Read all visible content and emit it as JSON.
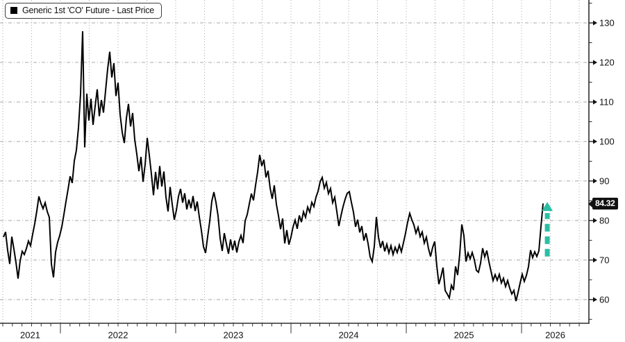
{
  "legend": {
    "label": "Generic 1st 'CO' Future - Last Price",
    "marker_color": "#000000"
  },
  "last_price": {
    "value": "84.32"
  },
  "colors": {
    "line": "#000000",
    "grid": "#a8a8a8",
    "axis": "#2f2f2f",
    "text": "#111111",
    "arrow": "#2bbfa4",
    "price_tag_bg": "#111111",
    "price_tag_text": "#ffffff"
  },
  "chart_data": {
    "type": "line",
    "title": "Generic 1st 'CO' Future - Last Price",
    "xlabel": "",
    "ylabel": "",
    "legend_position": "top-left",
    "grid": "dotted",
    "x_axis": {
      "t_min": 2021.476,
      "t_max": 2026.584,
      "year_boundaries": [
        2022,
        2023,
        2024,
        2025,
        2026
      ],
      "year_labels": [
        "2021",
        "2022",
        "2023",
        "2024",
        "2025",
        "2026"
      ],
      "grid_step_years": 0.25,
      "minor_tick_step_years": 0.08333
    },
    "y_axis": {
      "side": "right",
      "v_min": 54.0,
      "v_max": 135.8,
      "ticks": [
        60,
        70,
        80,
        90,
        100,
        110,
        120,
        130
      ],
      "minor_ticks": [
        55,
        65,
        75,
        85,
        95,
        105,
        115,
        125,
        135
      ]
    },
    "series": [
      {
        "name": "Generic 1st 'CO' Future - Last Price",
        "t_start": 2021.506,
        "t_step": 0.018072,
        "last_price": 84.32,
        "values": [
          75.8,
          77.1,
          72.5,
          69.0,
          75.9,
          72.8,
          69.4,
          65.3,
          69.8,
          72.2,
          71.4,
          72.9,
          74.8,
          73.6,
          76.5,
          79.2,
          82.4,
          86.1,
          84.3,
          83.0,
          84.5,
          82.3,
          80.8,
          69.0,
          65.6,
          72.0,
          74.5,
          76.2,
          78.4,
          81.5,
          84.8,
          87.9,
          91.2,
          89.5,
          95.1,
          97.8,
          103.5,
          112.0,
          127.9,
          98.5,
          112.1,
          105.3,
          110.8,
          104.2,
          108.9,
          113.2,
          106.4,
          110.5,
          107.3,
          112.8,
          118.3,
          122.7,
          116.2,
          119.8,
          111.5,
          114.9,
          106.8,
          102.3,
          99.6,
          105.9,
          109.5,
          103.8,
          107.2,
          100.5,
          96.8,
          92.5,
          96.1,
          89.8,
          94.2,
          100.9,
          96.5,
          91.8,
          86.4,
          92.3,
          87.9,
          93.8,
          88.6,
          92.4,
          85.9,
          82.3,
          88.5,
          84.1,
          80.2,
          82.6,
          86.1,
          88.0,
          84.5,
          86.9,
          82.8,
          85.3,
          83.1,
          86.2,
          82.4,
          84.8,
          80.9,
          77.5,
          73.4,
          71.8,
          75.9,
          79.8,
          84.9,
          87.2,
          84.6,
          81.2,
          75.5,
          72.3,
          76.8,
          74.1,
          71.6,
          75.2,
          72.5,
          74.9,
          71.9,
          74.6,
          76.2,
          74.3,
          79.9,
          81.5,
          84.2,
          86.8,
          85.1,
          88.9,
          92.3,
          96.6,
          93.8,
          95.4,
          90.9,
          92.6,
          88.2,
          85.5,
          88.9,
          84.1,
          81.2,
          77.8,
          80.5,
          74.2,
          77.6,
          73.9,
          75.8,
          78.4,
          80.1,
          77.9,
          81.3,
          79.6,
          82.2,
          80.8,
          83.4,
          82.1,
          84.6,
          83.5,
          85.9,
          87.4,
          89.8,
          90.9,
          88.2,
          89.6,
          86.8,
          88.1,
          84.5,
          85.9,
          82.3,
          78.6,
          81.2,
          83.5,
          85.4,
          86.9,
          87.3,
          84.6,
          82.1,
          78.4,
          80.2,
          77.0,
          78.6,
          74.9,
          76.8,
          74.2,
          70.8,
          69.6,
          73.5,
          80.9,
          75.8,
          73.1,
          74.8,
          72.2,
          74.0,
          71.8,
          73.6,
          71.4,
          73.2,
          71.9,
          73.8,
          72.1,
          74.4,
          76.8,
          79.6,
          81.8,
          80.2,
          78.9,
          76.8,
          78.3,
          75.9,
          77.1,
          74.3,
          75.8,
          72.9,
          70.9,
          73.2,
          74.7,
          68.5,
          63.9,
          65.8,
          68.1,
          62.3,
          61.4,
          60.4,
          63.6,
          62.4,
          68.4,
          66.2,
          71.5,
          79.0,
          76.2,
          69.6,
          71.8,
          70.3,
          71.9,
          70.1,
          67.4,
          66.9,
          69.2,
          73.0,
          70.8,
          72.4,
          69.6,
          67.2,
          64.8,
          66.3,
          64.9,
          66.4,
          64.2,
          65.4,
          63.3,
          64.8,
          62.9,
          61.4,
          62.3,
          59.6,
          61.8,
          64.2,
          66.4,
          64.6,
          66.1,
          68.3,
          72.5,
          70.6,
          72.1,
          70.9,
          72.3,
          78.5,
          84.32
        ]
      }
    ],
    "annotation": {
      "type": "up-arrow",
      "t": 2026.223,
      "v_from": 70.9,
      "v_to": 84.7,
      "color": "#2bbfa4"
    }
  }
}
